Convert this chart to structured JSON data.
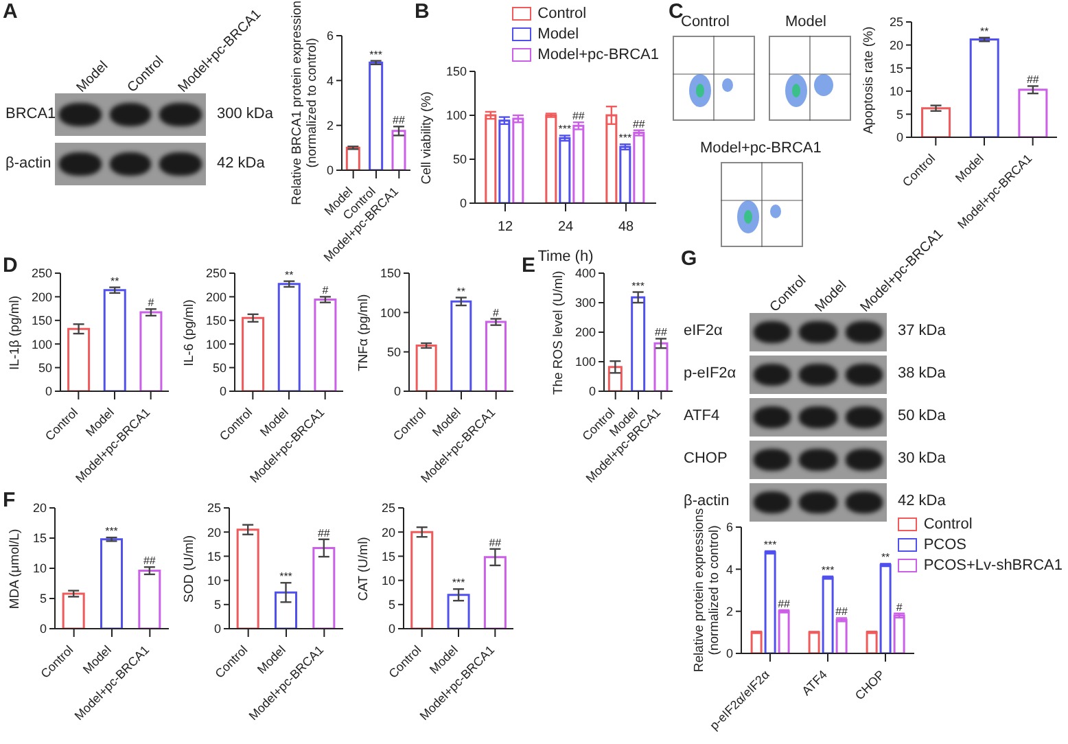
{
  "chart_data": [
    {
      "type": "other",
      "title": "A",
      "categories": [
        "Model",
        "Control",
        "Model+pc-BRCA1"
      ],
      "y_categories": [
        "BRCA1",
        "β-actin"
      ],
      "y2_categories": [
        "300 kDa",
        "42 kDa"
      ]
    },
    {
      "type": "bar",
      "ylabel": "Relative BRCA1 protein expression\n(normalized to control)",
      "categories": [
        "Model",
        "Control",
        "Model+pc-BRCA1"
      ],
      "values": [
        1.0,
        4.8,
        1.75
      ],
      "errors": [
        0.06,
        0.08,
        0.2
      ],
      "colors": [
        "#f05a5a",
        "#5050ee",
        "#cc5fe8"
      ],
      "value_labels": [
        null,
        "***",
        "##"
      ],
      "ylim": [
        0,
        6
      ],
      "yticks": [
        0,
        2,
        4,
        6
      ]
    },
    {
      "type": "bar",
      "title": "B",
      "xlabel": "Time (h)",
      "ylabel": "Cell viability (%)",
      "categories": [
        "12",
        "24",
        "48"
      ],
      "legend": "top right",
      "ylim": [
        0,
        150
      ],
      "yticks": [
        0,
        50,
        100,
        150
      ],
      "series": [
        {
          "name": "Control",
          "color": "#f05a5a",
          "values": [
            100,
            100,
            100
          ],
          "errors": [
            4,
            2,
            10
          ]
        },
        {
          "name": "Model",
          "color": "#5050ee",
          "values": [
            94,
            74,
            64
          ],
          "errors": [
            4,
            3,
            3
          ],
          "value_labels": [
            null,
            "***",
            "***"
          ]
        },
        {
          "name": "Model+pc-BRCA1",
          "color": "#cc5fe8",
          "values": [
            96,
            88,
            80
          ],
          "errors": [
            4,
            4,
            3
          ],
          "value_labels": [
            null,
            "##",
            "##"
          ]
        }
      ]
    },
    {
      "type": "other",
      "title": "C",
      "categories": [
        "Control",
        "Model",
        "Model+pc-BRCA1"
      ]
    },
    {
      "type": "bar",
      "ylabel": "Apoptosis rate (%)",
      "categories": [
        "Control",
        "Model",
        "Model+pc-BRCA1"
      ],
      "values": [
        6.3,
        21.2,
        10.3
      ],
      "errors": [
        0.6,
        0.4,
        0.8
      ],
      "colors": [
        "#f05a5a",
        "#5050ee",
        "#cc5fe8"
      ],
      "value_labels": [
        null,
        "**",
        "##"
      ],
      "ylim": [
        0,
        25
      ],
      "yticks": [
        0,
        5,
        10,
        15,
        20,
        25
      ]
    },
    {
      "type": "bar",
      "title": "D",
      "ylabel": "IL-1β (pg/ml)",
      "categories": [
        "Control",
        "Model",
        "Model+pc-BRCA1"
      ],
      "values": [
        132,
        214,
        167
      ],
      "errors": [
        10,
        6,
        7
      ],
      "colors": [
        "#f05a5a",
        "#5050ee",
        "#cc5fe8"
      ],
      "value_labels": [
        null,
        "**",
        "#"
      ],
      "ylim": [
        0,
        250
      ],
      "yticks": [
        0,
        50,
        100,
        150,
        200,
        250
      ]
    },
    {
      "type": "bar",
      "ylabel": "IL-6 (pg/ml)",
      "categories": [
        "Control",
        "Model",
        "Model+pc-BRCA1"
      ],
      "values": [
        155,
        227,
        194
      ],
      "errors": [
        8,
        6,
        6
      ],
      "colors": [
        "#f05a5a",
        "#5050ee",
        "#cc5fe8"
      ],
      "value_labels": [
        null,
        "**",
        "#"
      ],
      "ylim": [
        0,
        250
      ],
      "yticks": [
        0,
        50,
        100,
        150,
        200,
        250
      ]
    },
    {
      "type": "bar",
      "ylabel": "TNFα (pg/ml)",
      "categories": [
        "Control",
        "Model",
        "Model+pc-BRCA1"
      ],
      "values": [
        58,
        114,
        88
      ],
      "errors": [
        3,
        5,
        4
      ],
      "colors": [
        "#f05a5a",
        "#5050ee",
        "#cc5fe8"
      ],
      "value_labels": [
        null,
        "**",
        "#"
      ],
      "ylim": [
        0,
        150
      ],
      "yticks": [
        0,
        50,
        100,
        150
      ]
    },
    {
      "type": "bar",
      "title": "E",
      "ylabel": "The ROS level (U/ml)",
      "categories": [
        "Control",
        "Model",
        "Model+pc-BRCA1"
      ],
      "values": [
        82,
        318,
        162
      ],
      "errors": [
        20,
        18,
        16
      ],
      "colors": [
        "#f05a5a",
        "#5050ee",
        "#cc5fe8"
      ],
      "value_labels": [
        null,
        "***",
        "##"
      ],
      "ylim": [
        0,
        400
      ],
      "yticks": [
        0,
        100,
        200,
        300,
        400
      ]
    },
    {
      "type": "other",
      "title": "G",
      "categories": [
        "Control",
        "Model",
        "Model+pc-BRCA1"
      ],
      "y_categories": [
        "eIF2α",
        "p-eIF2α",
        "ATF4",
        "CHOP",
        "β-actin"
      ],
      "y2_categories": [
        "37 kDa",
        "38 kDa",
        "50 kDa",
        "30 kDa",
        "42 kDa"
      ]
    },
    {
      "type": "bar",
      "title": "F",
      "ylabel": "MDA (μmol/L)",
      "categories": [
        "Control",
        "Model",
        "Model+pc-BRCA1"
      ],
      "values": [
        5.8,
        14.8,
        9.6
      ],
      "errors": [
        0.5,
        0.3,
        0.6
      ],
      "colors": [
        "#f05a5a",
        "#5050ee",
        "#cc5fe8"
      ],
      "value_labels": [
        null,
        "***",
        "##"
      ],
      "ylim": [
        0,
        20
      ],
      "yticks": [
        0,
        5,
        10,
        15,
        20
      ]
    },
    {
      "type": "bar",
      "ylabel": "SOD (U/ml)",
      "categories": [
        "Control",
        "Model",
        "Model+pc-BRCA1"
      ],
      "values": [
        20.5,
        7.5,
        16.7
      ],
      "errors": [
        1,
        2,
        1.8
      ],
      "colors": [
        "#f05a5a",
        "#5050ee",
        "#cc5fe8"
      ],
      "value_labels": [
        null,
        "***",
        "##"
      ],
      "ylim": [
        0,
        25
      ],
      "yticks": [
        0,
        5,
        10,
        15,
        20,
        25
      ]
    },
    {
      "type": "bar",
      "ylabel": "CAT (U/ml)",
      "categories": [
        "Control",
        "Model",
        "Model+pc-BRCA1"
      ],
      "values": [
        20,
        7,
        14.8
      ],
      "errors": [
        1,
        1.2,
        1.7
      ],
      "colors": [
        "#f05a5a",
        "#5050ee",
        "#cc5fe8"
      ],
      "value_labels": [
        null,
        "***",
        "##"
      ],
      "ylim": [
        0,
        25
      ],
      "yticks": [
        0,
        5,
        10,
        15,
        20,
        25
      ]
    },
    {
      "type": "bar",
      "ylabel": "Relative protein expressions\n(normalized to control)",
      "categories": [
        "p-eIF2α/eIF2α",
        "ATF4",
        "CHOP"
      ],
      "legend": "top right",
      "ylim": [
        0,
        6
      ],
      "yticks": [
        0,
        2,
        4,
        6
      ],
      "series": [
        {
          "name": "Control",
          "color": "#f05a5a",
          "values": [
            1,
            1,
            1
          ],
          "errors": [
            0.04,
            0.03,
            0.04
          ]
        },
        {
          "name": "PCOS",
          "color": "#5050ee",
          "values": [
            4.8,
            3.6,
            4.2
          ],
          "errors": [
            0.06,
            0.06,
            0.06
          ],
          "value_labels": [
            "***",
            "***",
            "**"
          ]
        },
        {
          "name": "PCOS+Lv-shBRCA1",
          "color": "#cc5fe8",
          "values": [
            2.0,
            1.6,
            1.8
          ],
          "errors": [
            0.06,
            0.08,
            0.1
          ],
          "value_labels": [
            "##",
            "##",
            "#"
          ]
        }
      ]
    }
  ]
}
